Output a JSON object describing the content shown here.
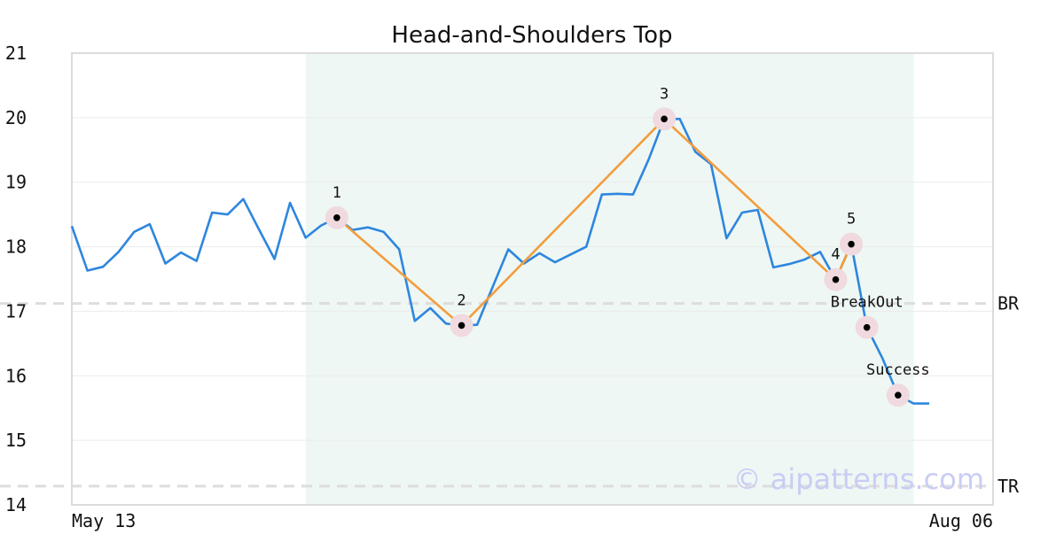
{
  "chart_data": {
    "type": "line",
    "title": "Head-and-Shoulders Top",
    "xlabel": "",
    "ylabel": "",
    "ylim": [
      14,
      21
    ],
    "yticks": [
      14,
      15,
      16,
      17,
      18,
      19,
      20,
      21
    ],
    "x_tick_labels": [
      {
        "index": 0,
        "label": "May 13"
      },
      {
        "index": 56,
        "label": "Aug 06"
      }
    ],
    "grid": true,
    "legend": "none",
    "colors": {
      "price": "#2e86de",
      "pattern": "#f39c3c",
      "highlight": "#eef7f3",
      "marker_halo": "#f0d9df",
      "reference": "#dddddd"
    },
    "series": [
      {
        "values": [
          18.32,
          17.63,
          17.69,
          17.92,
          18.23,
          18.35,
          17.74,
          17.91,
          17.78,
          18.53,
          18.5,
          18.74,
          18.27,
          17.81,
          18.68,
          18.14,
          18.33,
          18.45,
          18.26,
          18.3,
          18.23,
          17.96,
          16.85,
          17.05,
          16.81,
          16.78,
          16.79,
          17.38,
          17.96,
          17.74,
          17.9,
          17.76,
          17.88,
          18.0,
          18.81,
          18.82,
          18.81,
          19.35,
          19.98,
          19.98,
          19.47,
          19.28,
          18.13,
          18.53,
          18.57,
          17.68,
          17.73,
          17.8,
          17.92,
          17.49,
          18.04,
          16.75,
          16.27,
          15.7,
          15.57,
          15.57
        ]
      }
    ],
    "highlight_range": [
      15,
      54
    ],
    "pattern_points": [
      {
        "label": "1",
        "index": 17,
        "value": 18.45
      },
      {
        "label": "2",
        "index": 25,
        "value": 16.78
      },
      {
        "label": "3",
        "index": 38,
        "value": 19.98
      },
      {
        "label": "4",
        "index": 49,
        "value": 17.49
      },
      {
        "label": "5",
        "index": 50,
        "value": 18.04
      }
    ],
    "event_points": [
      {
        "label": "BreakOut",
        "index": 51,
        "value": 16.75
      },
      {
        "label": "Success",
        "index": 53,
        "value": 15.7
      }
    ],
    "reference_lines": [
      {
        "label": "BR",
        "value": 17.12
      },
      {
        "label": "TR",
        "value": 14.29
      }
    ]
  },
  "watermark": "© aipatterns.com"
}
